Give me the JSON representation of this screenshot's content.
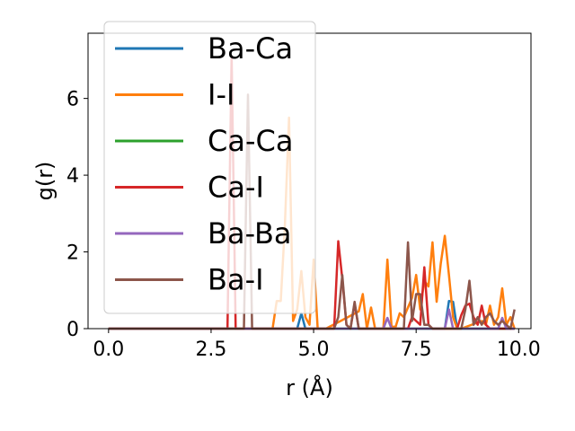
{
  "chart_data": {
    "type": "line",
    "title": "",
    "xlabel": "r (Å)",
    "ylabel": "g(r)",
    "xlim": [
      -0.5,
      10.3
    ],
    "ylim": [
      0,
      7.7
    ],
    "xticks": [
      0.0,
      2.5,
      5.0,
      7.5,
      10.0
    ],
    "xtick_labels": [
      "0.0",
      "2.5",
      "5.0",
      "7.5",
      "10.0"
    ],
    "yticks": [
      0,
      2,
      4,
      6
    ],
    "ytick_labels": [
      "0",
      "2",
      "4",
      "6"
    ],
    "grid": false,
    "legend_position": "top-left",
    "series": [
      {
        "name": "Ba-Ca",
        "color": "#1f77b4",
        "x": [
          0,
          4.6,
          4.7,
          4.8,
          4.9,
          5.0,
          8.1,
          8.2,
          8.3,
          8.4,
          8.5,
          9.9
        ],
        "y": [
          0,
          0,
          0.4,
          0,
          0,
          0,
          0,
          0,
          0.72,
          0.7,
          0,
          0
        ]
      },
      {
        "name": "I-I",
        "color": "#ff7f0e",
        "x": [
          0,
          4.0,
          4.1,
          4.2,
          4.3,
          4.4,
          4.5,
          4.6,
          4.7,
          4.8,
          4.9,
          5.0,
          5.1,
          5.2,
          5.3,
          6.1,
          6.2,
          6.3,
          6.4,
          6.5,
          6.7,
          6.8,
          6.9,
          7.0,
          7.1,
          7.2,
          7.4,
          7.5,
          7.6,
          7.7,
          7.8,
          7.9,
          8.0,
          8.1,
          8.2,
          8.3,
          8.4,
          8.5,
          8.6,
          9.1,
          9.2,
          9.3,
          9.4,
          9.5,
          9.6,
          9.7,
          9.8,
          9.9
        ],
        "y": [
          0,
          0,
          0.72,
          0.72,
          2.7,
          5.5,
          0.2,
          0.5,
          1.5,
          0.3,
          0.1,
          1.8,
          0,
          0,
          0,
          0.45,
          0.9,
          0,
          0.55,
          0,
          0,
          1.8,
          0.05,
          0.05,
          0.4,
          0.3,
          0.8,
          1.4,
          0.5,
          1.25,
          1.1,
          2.25,
          0.7,
          1.7,
          2.42,
          1.4,
          0.3,
          0,
          0,
          0.2,
          0.1,
          0.6,
          0.1,
          0.3,
          1.05,
          0.1,
          0.3,
          0
        ]
      },
      {
        "name": "Ca-Ca",
        "color": "#2ca02c",
        "x": [
          0,
          9.9
        ],
        "y": [
          0,
          0
        ]
      },
      {
        "name": "Ca-I",
        "color": "#d62728",
        "x": [
          0,
          2.9,
          3.0,
          3.1,
          3.2,
          3.3,
          5.4,
          5.5,
          5.6,
          5.7,
          5.8,
          5.9,
          6.0,
          6.1,
          6.2,
          6.3,
          7.0,
          7.1,
          7.2,
          7.3,
          7.4,
          7.5,
          7.6,
          7.7,
          7.8,
          7.9,
          8.0,
          8.5,
          8.6,
          8.7,
          8.8,
          8.9,
          9.0,
          9.1,
          9.2,
          9.3,
          9.9
        ],
        "y": [
          0,
          0,
          7.1,
          0,
          0,
          0,
          0,
          0,
          2.28,
          1.3,
          0.1,
          0,
          0.65,
          0,
          0,
          0,
          0,
          0,
          0,
          0,
          0.3,
          0.2,
          0.1,
          1.6,
          0.1,
          0,
          0,
          0,
          0.35,
          0.6,
          0.65,
          0.3,
          0.1,
          0.6,
          0.1,
          0,
          0
        ]
      },
      {
        "name": "Ba-Ba",
        "color": "#9467bd",
        "x": [
          0,
          6.7,
          6.8,
          6.9,
          8.2,
          8.3,
          8.4,
          9.5,
          9.6,
          9.7,
          9.9
        ],
        "y": [
          0,
          0,
          0.28,
          0,
          0,
          0.5,
          0,
          0,
          0.28,
          0,
          0
        ]
      },
      {
        "name": "Ba-I",
        "color": "#8c564b",
        "x": [
          0,
          3.3,
          3.4,
          3.5,
          3.6,
          5.4,
          5.5,
          5.6,
          5.7,
          5.8,
          5.9,
          6.0,
          6.1,
          7.1,
          7.2,
          7.3,
          7.4,
          7.5,
          7.6,
          7.7,
          7.8,
          7.9,
          8.0,
          8.6,
          8.7,
          8.8,
          8.9,
          9.0,
          9.1,
          9.2,
          9.3,
          9.4,
          9.5,
          9.6,
          9.7,
          9.8,
          9.9
        ],
        "y": [
          0,
          0,
          6.1,
          0,
          0,
          0,
          0,
          0.3,
          1.4,
          0.1,
          0,
          0.7,
          0,
          0,
          0,
          2.25,
          0.2,
          0.9,
          0.9,
          0.1,
          0.1,
          0,
          0,
          0,
          0.5,
          1.25,
          0.1,
          0.3,
          0.1,
          0.3,
          0.4,
          0.2,
          0.1,
          0.2,
          0.1,
          0,
          0.5
        ]
      }
    ]
  }
}
